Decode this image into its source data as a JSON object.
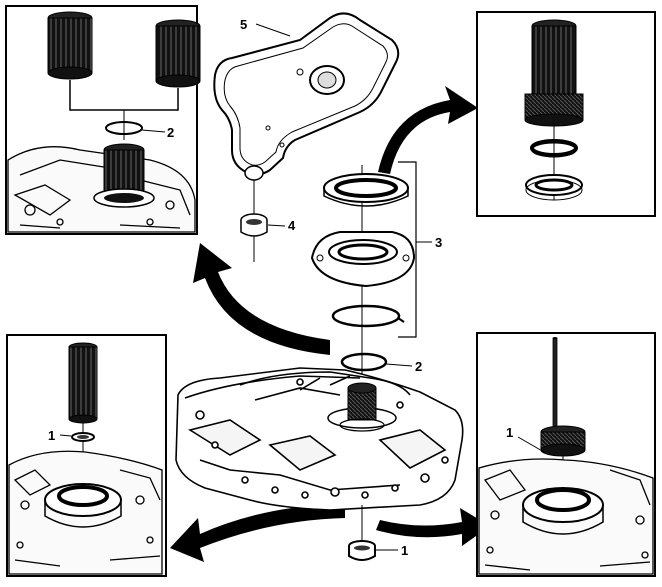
{
  "callouts": {
    "c1_left_inset": "1",
    "c1_right_inset": "1",
    "c1_bottom": "1",
    "c2_top_inset": "2",
    "c2_center": "2",
    "c3": "3",
    "c4": "4",
    "c5": "5"
  },
  "colors": {
    "ink": "#000000",
    "paper": "#ffffff",
    "shade": "#1a1a1a"
  },
  "icons": [
    "curved-arrow-icon",
    "filter-part",
    "bearing-part",
    "seal-ring-part",
    "tool-cylinder-part"
  ]
}
